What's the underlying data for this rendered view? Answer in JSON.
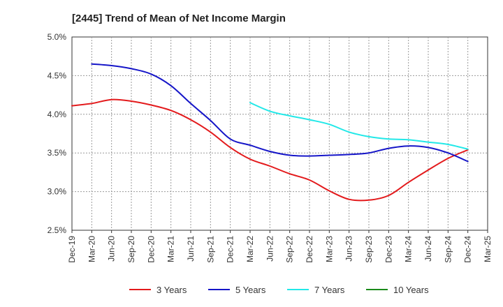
{
  "chart_data": {
    "type": "line",
    "title": "[2445]  Trend of Mean of Net Income Margin",
    "xlabel": "",
    "ylabel": "",
    "x": [
      "Dec-19",
      "Mar-20",
      "Jun-20",
      "Sep-20",
      "Dec-20",
      "Mar-21",
      "Jun-21",
      "Sep-21",
      "Dec-21",
      "Mar-22",
      "Jun-22",
      "Sep-22",
      "Dec-22",
      "Mar-23",
      "Jun-23",
      "Sep-23",
      "Dec-23",
      "Mar-24",
      "Jun-24",
      "Sep-24",
      "Dec-24",
      "Mar-25"
    ],
    "ylim": [
      2.5,
      5.0
    ],
    "yticks": [
      "2.5%",
      "3.0%",
      "3.5%",
      "4.0%",
      "4.5%",
      "5.0%"
    ],
    "grid": true,
    "legend_position": "bottom",
    "series": [
      {
        "name": "3 Years",
        "color": "#e31a1c",
        "values": [
          4.11,
          4.14,
          4.19,
          4.17,
          4.12,
          4.05,
          3.93,
          3.77,
          3.57,
          3.42,
          3.33,
          3.23,
          3.15,
          3.01,
          2.9,
          2.89,
          2.95,
          3.12,
          3.28,
          3.43,
          3.54,
          null
        ]
      },
      {
        "name": "5 Years",
        "color": "#1515c8",
        "values": [
          null,
          4.65,
          4.63,
          4.59,
          4.52,
          4.37,
          4.14,
          3.92,
          3.68,
          3.6,
          3.52,
          3.47,
          3.46,
          3.47,
          3.48,
          3.5,
          3.56,
          3.59,
          3.57,
          3.5,
          3.39,
          null
        ]
      },
      {
        "name": "7 Years",
        "color": "#22e8e8",
        "values": [
          null,
          null,
          null,
          null,
          null,
          null,
          null,
          null,
          null,
          4.15,
          4.04,
          3.98,
          3.93,
          3.87,
          3.77,
          3.71,
          3.68,
          3.67,
          3.64,
          3.61,
          3.55,
          null
        ]
      },
      {
        "name": "10 Years",
        "color": "#1a8a1a",
        "values": [
          null,
          null,
          null,
          null,
          null,
          null,
          null,
          null,
          null,
          null,
          null,
          null,
          null,
          null,
          null,
          null,
          null,
          null,
          null,
          null,
          null,
          null
        ]
      }
    ]
  }
}
